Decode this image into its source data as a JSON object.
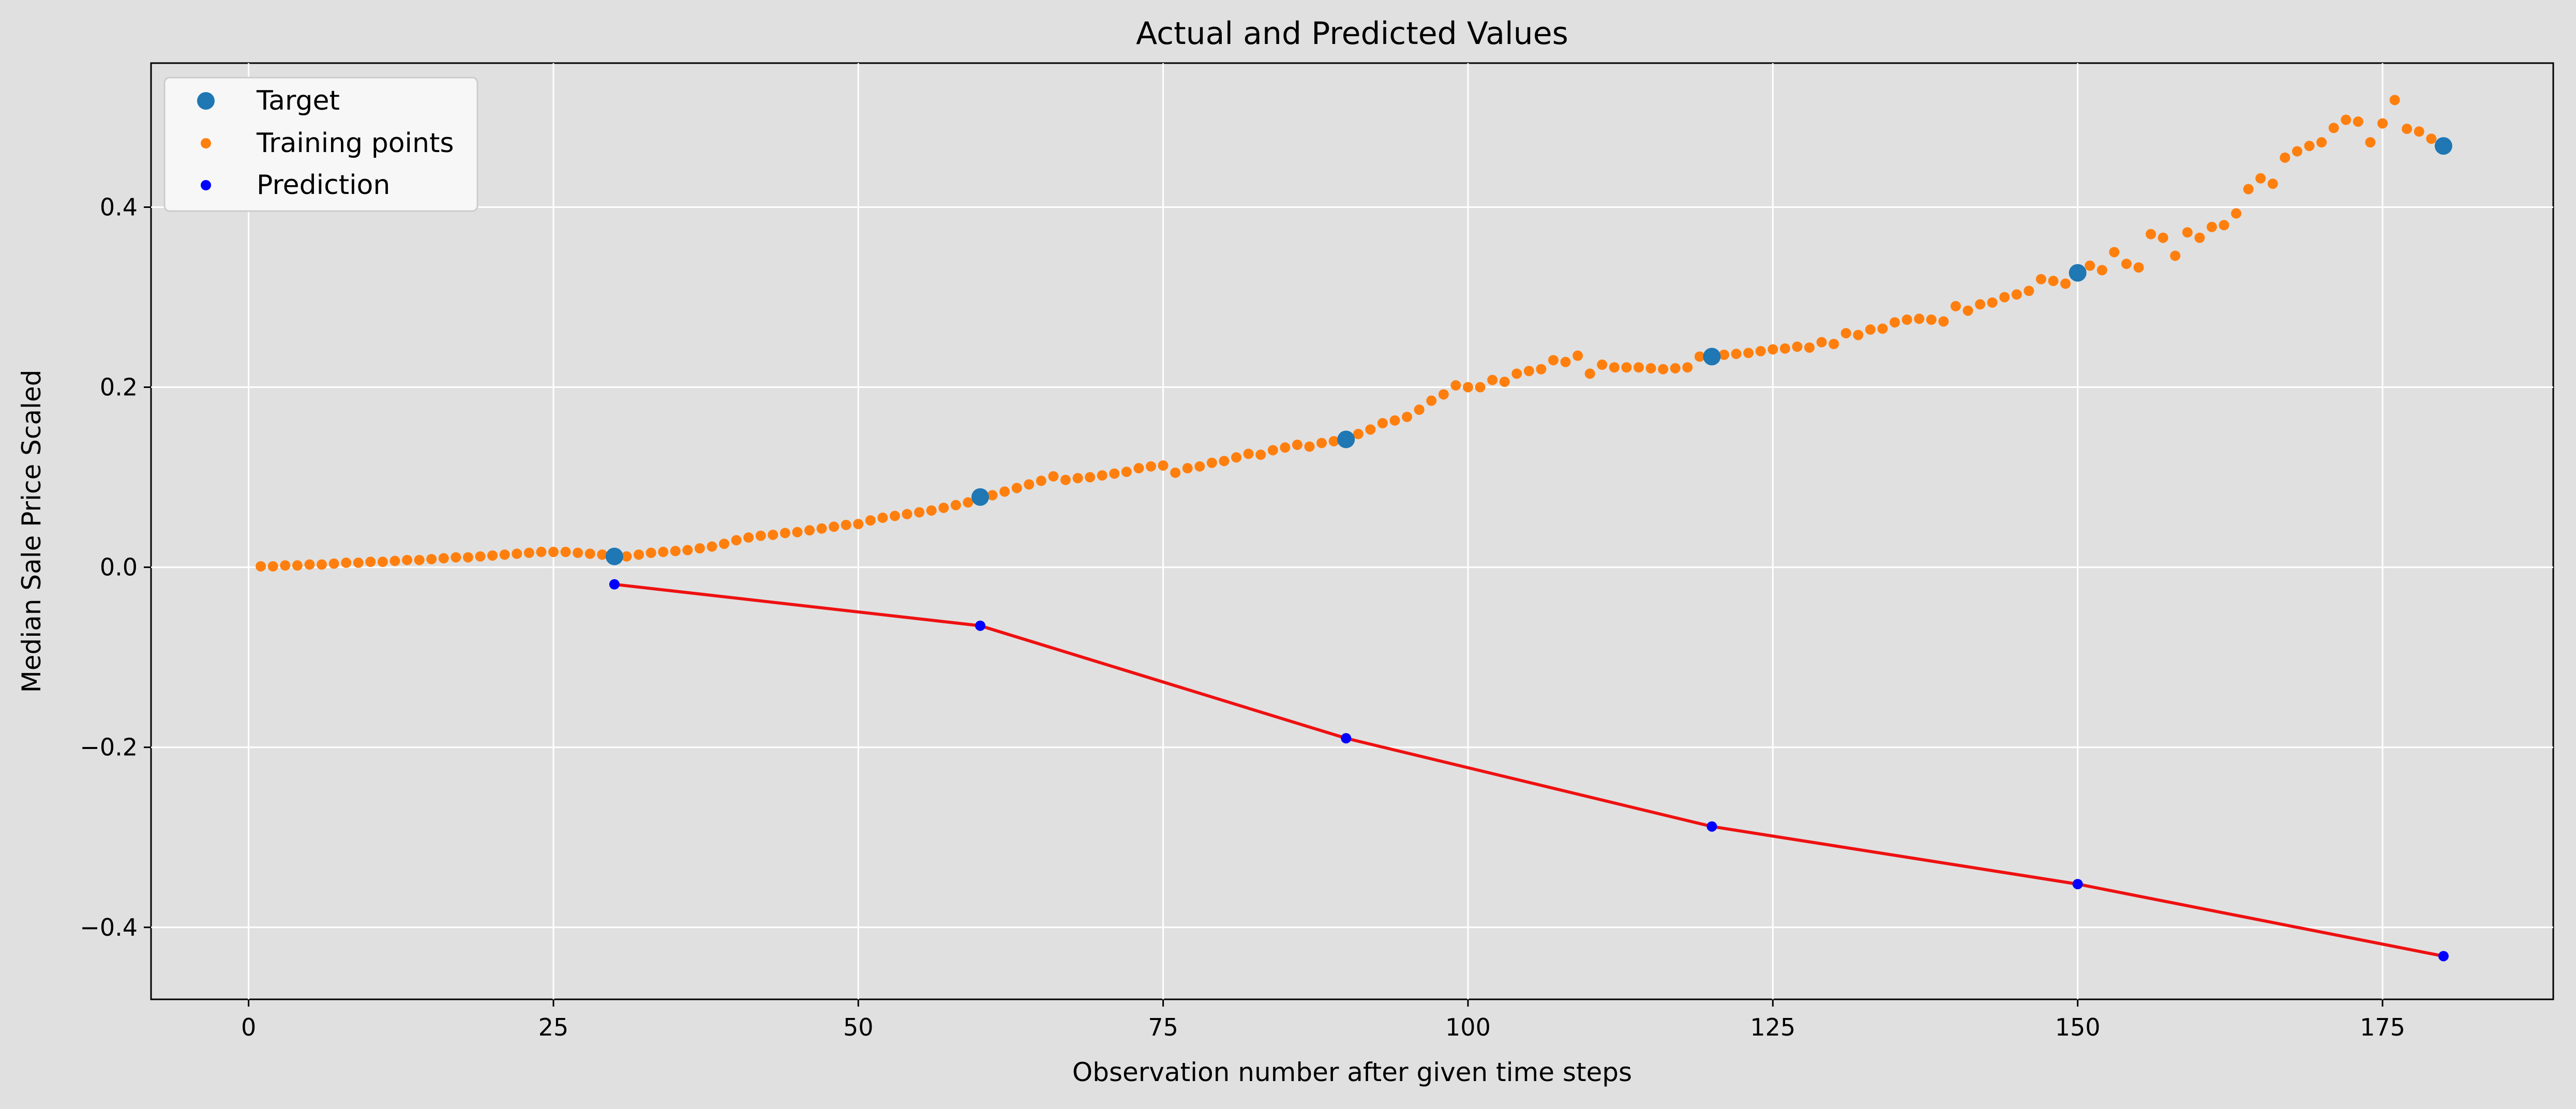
{
  "chart_data": {
    "type": "line",
    "title": "Actual and Predicted Values",
    "xlabel": "Observation number after given time steps",
    "ylabel": "Median Sale Price Scaled",
    "xlim": [
      -8,
      189
    ],
    "ylim": [
      -0.48,
      0.56
    ],
    "xticks": [
      0,
      25,
      50,
      75,
      100,
      125,
      150,
      175
    ],
    "xtick_labels": [
      "0",
      "25",
      "50",
      "75",
      "100",
      "125",
      "150",
      "175"
    ],
    "yticks": [
      -0.4,
      -0.2,
      0.0,
      0.2,
      0.4
    ],
    "ytick_labels": [
      "−0.4",
      "−0.2",
      "0.0",
      "0.2",
      "0.4"
    ],
    "grid": true,
    "legend_position": "top-left",
    "series": [
      {
        "name": "Target",
        "marker": "large-dot",
        "color": "#1f77b4",
        "x": [
          30,
          60,
          90,
          120,
          150,
          180
        ],
        "y": [
          0.012,
          0.078,
          0.142,
          0.234,
          0.327,
          0.468
        ]
      },
      {
        "name": "Training points",
        "marker": "small-dot",
        "color": "#ff7f0e",
        "x": [
          1,
          2,
          3,
          4,
          5,
          6,
          7,
          8,
          9,
          10,
          11,
          12,
          13,
          14,
          15,
          16,
          17,
          18,
          19,
          20,
          21,
          22,
          23,
          24,
          25,
          26,
          27,
          28,
          29,
          30,
          31,
          32,
          33,
          34,
          35,
          36,
          37,
          38,
          39,
          40,
          41,
          42,
          43,
          44,
          45,
          46,
          47,
          48,
          49,
          50,
          51,
          52,
          53,
          54,
          55,
          56,
          57,
          58,
          59,
          60,
          61,
          62,
          63,
          64,
          65,
          66,
          67,
          68,
          69,
          70,
          71,
          72,
          73,
          74,
          75,
          76,
          77,
          78,
          79,
          80,
          81,
          82,
          83,
          84,
          85,
          86,
          87,
          88,
          89,
          90,
          91,
          92,
          93,
          94,
          95,
          96,
          97,
          98,
          99,
          100,
          101,
          102,
          103,
          104,
          105,
          106,
          107,
          108,
          109,
          110,
          111,
          112,
          113,
          114,
          115,
          116,
          117,
          118,
          119,
          120,
          121,
          122,
          123,
          124,
          125,
          126,
          127,
          128,
          129,
          130,
          131,
          132,
          133,
          134,
          135,
          136,
          137,
          138,
          139,
          140,
          141,
          142,
          143,
          144,
          145,
          146,
          147,
          148,
          149,
          150,
          151,
          152,
          153,
          154,
          155,
          156,
          157,
          158,
          159,
          160,
          161,
          162,
          163,
          164,
          165,
          166,
          167,
          168,
          169,
          170,
          171,
          172,
          173,
          174,
          175,
          176,
          177,
          178,
          179
        ],
        "y": [
          0.001,
          0.001,
          0.002,
          0.002,
          0.003,
          0.003,
          0.004,
          0.005,
          0.005,
          0.006,
          0.006,
          0.007,
          0.008,
          0.008,
          0.009,
          0.01,
          0.011,
          0.011,
          0.012,
          0.013,
          0.014,
          0.015,
          0.016,
          0.017,
          0.017,
          0.017,
          0.016,
          0.015,
          0.014,
          0.013,
          0.012,
          0.014,
          0.016,
          0.017,
          0.018,
          0.019,
          0.021,
          0.023,
          0.026,
          0.03,
          0.033,
          0.035,
          0.036,
          0.038,
          0.039,
          0.041,
          0.043,
          0.045,
          0.047,
          0.048,
          0.052,
          0.055,
          0.057,
          0.059,
          0.061,
          0.063,
          0.066,
          0.069,
          0.072,
          0.076,
          0.08,
          0.084,
          0.088,
          0.092,
          0.096,
          0.101,
          0.097,
          0.099,
          0.1,
          0.102,
          0.104,
          0.106,
          0.11,
          0.112,
          0.113,
          0.105,
          0.11,
          0.112,
          0.116,
          0.118,
          0.122,
          0.126,
          0.125,
          0.13,
          0.133,
          0.136,
          0.134,
          0.138,
          0.14,
          0.142,
          0.148,
          0.153,
          0.16,
          0.163,
          0.167,
          0.175,
          0.185,
          0.192,
          0.202,
          0.2,
          0.2,
          0.208,
          0.206,
          0.215,
          0.218,
          0.22,
          0.23,
          0.228,
          0.235,
          0.215,
          0.225,
          0.222,
          0.222,
          0.222,
          0.221,
          0.22,
          0.221,
          0.222,
          0.234,
          0.236,
          0.236,
          0.237,
          0.238,
          0.24,
          0.242,
          0.243,
          0.245,
          0.244,
          0.25,
          0.248,
          0.26,
          0.258,
          0.264,
          0.265,
          0.272,
          0.275,
          0.276,
          0.275,
          0.273,
          0.29,
          0.285,
          0.292,
          0.294,
          0.3,
          0.303,
          0.307,
          0.32,
          0.318,
          0.315,
          0.327,
          0.335,
          0.33,
          0.35,
          0.337,
          0.333,
          0.37,
          0.366,
          0.346,
          0.372,
          0.366,
          0.378,
          0.38,
          0.393,
          0.42,
          0.432,
          0.426,
          0.455,
          0.462,
          0.468,
          0.472,
          0.488,
          0.497,
          0.495,
          0.472,
          0.493,
          0.519,
          0.487,
          0.484,
          0.476
        ]
      },
      {
        "name": "Prediction",
        "marker": "small-dot",
        "color": "#0000ff",
        "x": [
          30,
          60,
          90,
          120,
          150,
          180
        ],
        "y": [
          -0.019,
          -0.065,
          -0.19,
          -0.288,
          -0.352,
          -0.432
        ]
      }
    ],
    "prediction_line_color": "#ee1111"
  }
}
